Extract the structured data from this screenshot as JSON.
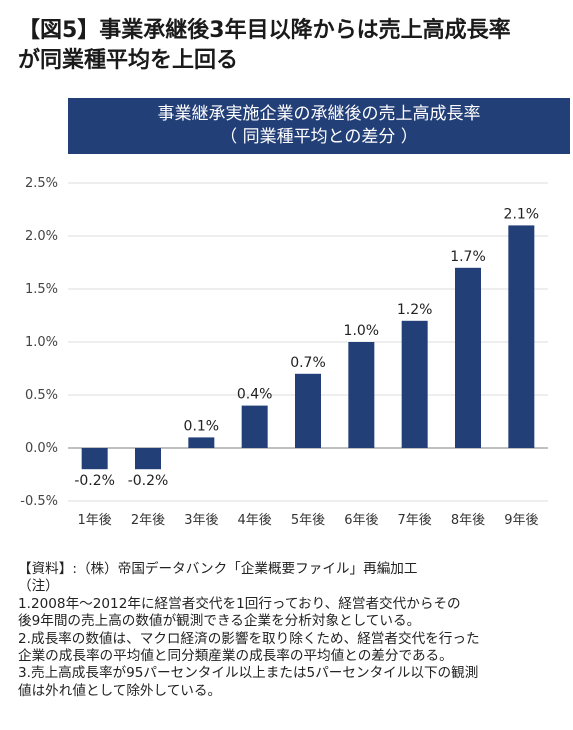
{
  "heading": {
    "line1": "【図5】事業承継後3年目以降からは売上高成長率",
    "line2": "が同業種平均を上回る"
  },
  "chart_data": {
    "type": "bar",
    "title": "事業継承実施企業の承継後の売上高成長率",
    "subtitle": "（ 同業種平均との差分 ）",
    "categories": [
      "1年後",
      "2年後",
      "3年後",
      "4年後",
      "5年後",
      "6年後",
      "7年後",
      "8年後",
      "9年後"
    ],
    "values": [
      -0.2,
      -0.2,
      0.1,
      0.4,
      0.7,
      1.0,
      1.2,
      1.7,
      2.1
    ],
    "data_labels": [
      "-0.2%",
      "-0.2%",
      "0.1%",
      "0.4%",
      "0.7%",
      "1.0%",
      "1.2%",
      "1.7%",
      "2.1%"
    ],
    "yticks": [
      "2.5%",
      "2.0%",
      "1.5%",
      "1.0%",
      "0.5%",
      "0.0%",
      "-0.5%"
    ],
    "ylim": [
      -0.5,
      2.5
    ],
    "grid": true,
    "bar_color": "#233f78",
    "banner_color": "#233f78"
  },
  "notes": {
    "source": "【資料】:（株）帝国データバンク「企業概要ファイル」再編加工",
    "label": "（注）",
    "lines": [
      "1.2008年～2012年に経営者交代を1回行っており、経営者交代からその",
      "後9年間の売上高の数値が観測できる企業を分析対象としている。",
      "2.成長率の数値は、マクロ経済の影響を取り除くため、経営者交代を行った",
      "企業の成長率の平均値と同分類産業の成長率の平均値との差分である。",
      "3.売上高成長率が95パーセンタイル以上または5パーセンタイル以下の観測",
      "値は外れ値として除外している。"
    ]
  }
}
